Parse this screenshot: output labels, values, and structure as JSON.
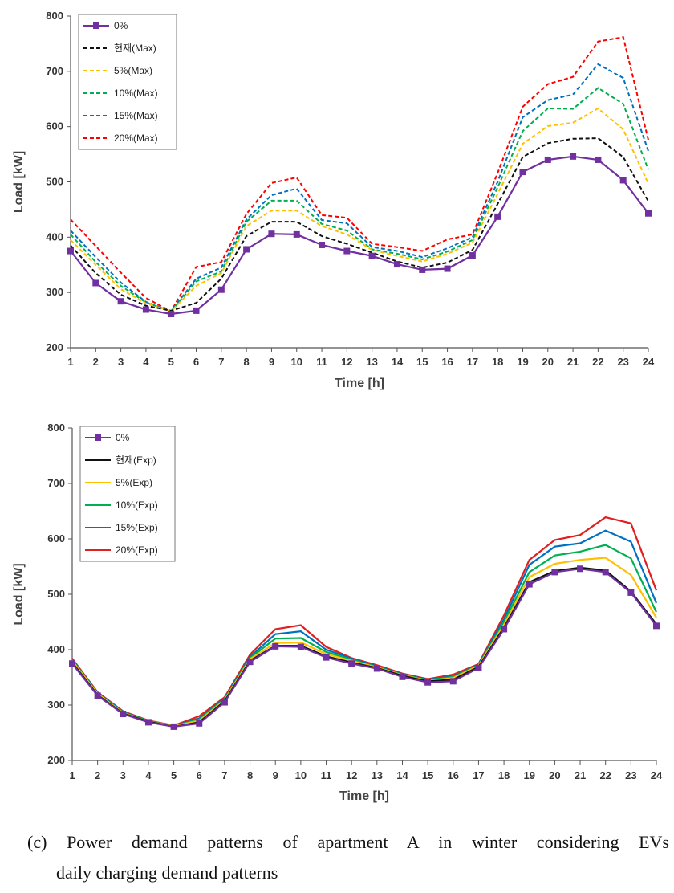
{
  "chart_data": [
    {
      "type": "line",
      "title": "",
      "xlabel": "Time [h]",
      "ylabel": "Load [kW]",
      "ylim": [
        200,
        800
      ],
      "yticks": [
        200,
        300,
        400,
        500,
        600,
        700,
        800
      ],
      "x": [
        1,
        2,
        3,
        4,
        5,
        6,
        7,
        8,
        9,
        10,
        11,
        12,
        13,
        14,
        15,
        16,
        17,
        18,
        19,
        20,
        21,
        22,
        23,
        24
      ],
      "grid": false,
      "legend": "top-left",
      "series": [
        {
          "name": "0%",
          "style": "solid-marker",
          "color": "#7030a0",
          "values": [
            375,
            317,
            284,
            269,
            261,
            267,
            305,
            378,
            406,
            405,
            386,
            375,
            366,
            351,
            341,
            343,
            367,
            437,
            518,
            540,
            546,
            540,
            503,
            443
          ]
        },
        {
          "name": "현재(Max)",
          "style": "dashed",
          "color": "#111111",
          "values": [
            385,
            335,
            296,
            276,
            267,
            281,
            325,
            402,
            428,
            428,
            402,
            388,
            372,
            356,
            345,
            354,
            377,
            460,
            545,
            570,
            578,
            579,
            545,
            465
          ]
        },
        {
          "name": "5%(Max)",
          "style": "dashed",
          "color": "#ffc000",
          "values": [
            395,
            350,
            306,
            280,
            266,
            312,
            335,
            420,
            448,
            448,
            420,
            405,
            377,
            366,
            356,
            370,
            390,
            478,
            569,
            601,
            607,
            633,
            595,
            497
          ]
        },
        {
          "name": "10%(Max)",
          "style": "dashed",
          "color": "#00b050",
          "values": [
            405,
            355,
            312,
            282,
            266,
            320,
            338,
            428,
            466,
            466,
            424,
            412,
            378,
            370,
            360,
            374,
            395,
            490,
            592,
            633,
            632,
            670,
            641,
            522
          ]
        },
        {
          "name": "15%(Max)",
          "style": "dashed",
          "color": "#0070c0",
          "values": [
            412,
            364,
            318,
            283,
            266,
            325,
            345,
            432,
            476,
            488,
            431,
            425,
            382,
            375,
            364,
            380,
            400,
            500,
            617,
            648,
            658,
            713,
            688,
            556
          ]
        },
        {
          "name": "20%(Max)",
          "style": "dashed",
          "color": "#ff0000",
          "values": [
            432,
            384,
            336,
            290,
            266,
            346,
            355,
            442,
            498,
            508,
            440,
            435,
            388,
            382,
            375,
            396,
            405,
            516,
            636,
            677,
            690,
            754,
            762,
            576
          ]
        }
      ]
    },
    {
      "type": "line",
      "title": "",
      "xlabel": "Time [h]",
      "ylabel": "Load [kW]",
      "ylim": [
        200,
        800
      ],
      "yticks": [
        200,
        300,
        400,
        500,
        600,
        700,
        800
      ],
      "x": [
        1,
        2,
        3,
        4,
        5,
        6,
        7,
        8,
        9,
        10,
        11,
        12,
        13,
        14,
        15,
        16,
        17,
        18,
        19,
        20,
        21,
        22,
        23,
        24
      ],
      "grid": false,
      "legend": "top-left",
      "series": [
        {
          "name": "0%",
          "style": "solid-marker",
          "color": "#7030a0",
          "values": [
            375,
            317,
            284,
            269,
            261,
            267,
            305,
            378,
            406,
            405,
            386,
            375,
            366,
            351,
            341,
            343,
            367,
            437,
            518,
            540,
            546,
            540,
            503,
            443
          ]
        },
        {
          "name": "현재(Exp)",
          "style": "solid",
          "color": "#111111",
          "values": [
            377,
            318,
            285,
            270,
            261,
            269,
            307,
            380,
            407,
            407,
            388,
            377,
            367,
            353,
            343,
            346,
            369,
            440,
            522,
            542,
            548,
            543,
            505,
            446
          ]
        },
        {
          "name": "5%(Exp)",
          "style": "solid",
          "color": "#ffc000",
          "values": [
            380,
            320,
            286,
            270,
            262,
            272,
            309,
            383,
            412,
            413,
            392,
            380,
            368,
            354,
            344,
            349,
            371,
            445,
            531,
            555,
            562,
            566,
            535,
            458
          ]
        },
        {
          "name": "10%(Exp)",
          "style": "solid",
          "color": "#00b050",
          "values": [
            381,
            321,
            287,
            271,
            262,
            274,
            311,
            385,
            420,
            421,
            396,
            382,
            369,
            355,
            345,
            351,
            372,
            450,
            540,
            570,
            577,
            589,
            565,
            468
          ]
        },
        {
          "name": "15%(Exp)",
          "style": "solid",
          "color": "#0070c0",
          "values": [
            382,
            322,
            288,
            271,
            262,
            276,
            312,
            387,
            428,
            433,
            400,
            384,
            370,
            356,
            346,
            352,
            373,
            455,
            553,
            586,
            592,
            615,
            595,
            484
          ]
        },
        {
          "name": "20%(Exp)",
          "style": "solid",
          "color": "#e02020",
          "values": [
            384,
            323,
            289,
            272,
            263,
            280,
            314,
            391,
            437,
            444,
            405,
            385,
            372,
            357,
            347,
            355,
            374,
            462,
            562,
            598,
            607,
            639,
            628,
            507
          ]
        }
      ]
    }
  ],
  "caption": {
    "line1": "(c) Power demand patterns of apartment A in winter considering EVs",
    "line2": "daily charging demand patterns"
  }
}
